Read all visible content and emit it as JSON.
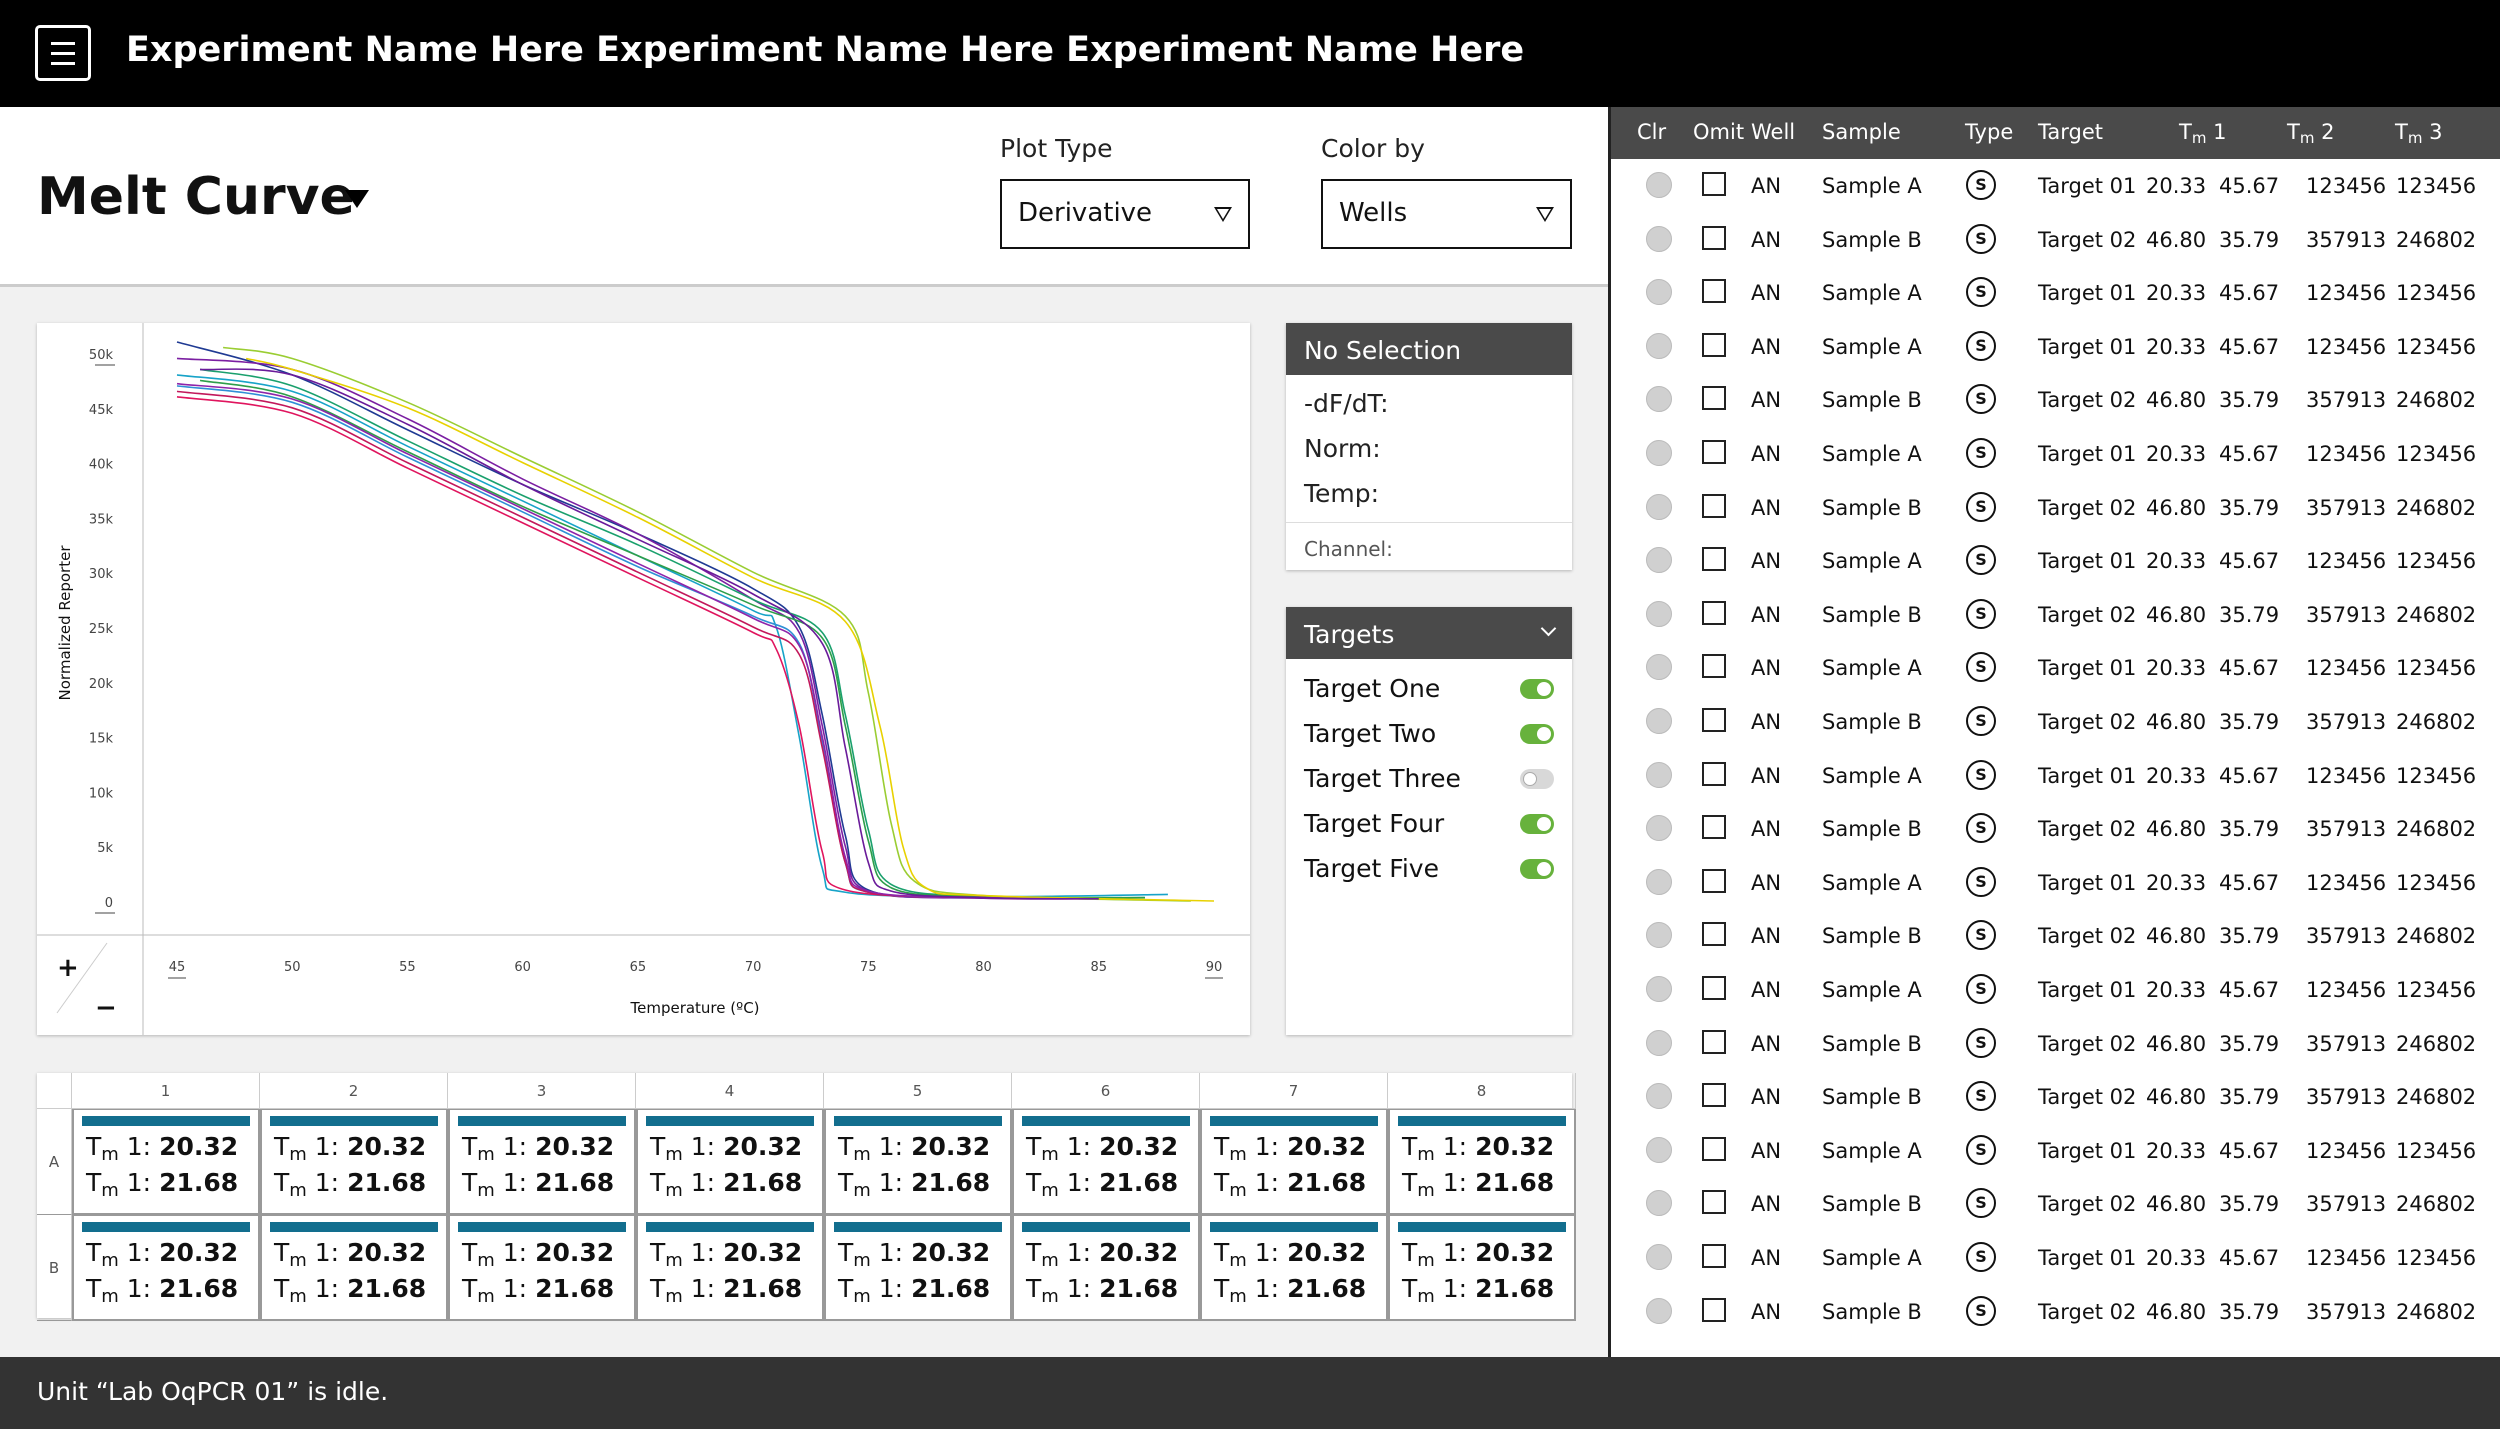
{
  "header": {
    "menu_icon": "hamburger-menu-icon",
    "experiment_name": "Experiment Name Here Experiment Name Here Experiment Name Here"
  },
  "view": {
    "title": "Melt Curve",
    "plot_type_label": "Plot Type",
    "plot_type_value": "Derivative",
    "color_by_label": "Color by",
    "color_by_value": "Wells"
  },
  "chart": {
    "ylabel": "Normalized Reporter",
    "xlabel": "Temperature (ºC)",
    "y_ticks": [
      "0",
      "5k",
      "10k",
      "15k",
      "20k",
      "25k",
      "30k",
      "35k",
      "40k",
      "45k",
      "50k"
    ],
    "x_ticks": [
      "45",
      "50",
      "55",
      "60",
      "65",
      "70",
      "75",
      "80",
      "85",
      "90"
    ],
    "zoom_in": "+",
    "zoom_out": "−"
  },
  "chart_data": {
    "type": "line",
    "xlabel": "Temperature (ºC)",
    "ylabel": "Normalized Reporter",
    "xlim": [
      45,
      90
    ],
    "ylim": [
      0,
      50000
    ],
    "series": [
      {
        "color": "#1f3a93",
        "values": [
          [
            45,
            51000
          ],
          [
            50,
            48000
          ],
          [
            55,
            43000
          ],
          [
            60,
            38000
          ],
          [
            65,
            33500
          ],
          [
            70,
            28500
          ],
          [
            72,
            25000
          ],
          [
            73,
            17000
          ],
          [
            74,
            6000
          ],
          [
            75,
            1000
          ],
          [
            80,
            300
          ],
          [
            87,
            300
          ]
        ]
      },
      {
        "color": "#7b1fa2",
        "values": [
          [
            45,
            49500
          ],
          [
            50,
            48500
          ],
          [
            55,
            44000
          ],
          [
            60,
            38500
          ],
          [
            65,
            33500
          ],
          [
            70,
            27500
          ],
          [
            72,
            24500
          ],
          [
            73,
            16000
          ],
          [
            74,
            5000
          ],
          [
            75,
            900
          ],
          [
            80,
            250
          ],
          [
            85,
            200
          ]
        ]
      },
      {
        "color": "#17a3c8",
        "values": [
          [
            45,
            48000
          ],
          [
            50,
            46500
          ],
          [
            55,
            41500
          ],
          [
            60,
            36500
          ],
          [
            65,
            31500
          ],
          [
            70,
            26500
          ],
          [
            71,
            25000
          ],
          [
            72,
            15000
          ],
          [
            73,
            3000
          ],
          [
            74,
            800
          ],
          [
            80,
            400
          ],
          [
            88,
            600
          ]
        ]
      },
      {
        "color": "#2f8fd6",
        "values": [
          [
            45,
            47000
          ],
          [
            50,
            45500
          ],
          [
            55,
            40500
          ],
          [
            60,
            35500
          ],
          [
            65,
            30500
          ],
          [
            70,
            26000
          ],
          [
            72,
            23500
          ],
          [
            73,
            14500
          ],
          [
            74,
            3500
          ],
          [
            75,
            800
          ],
          [
            80,
            300
          ],
          [
            86,
            300
          ]
        ]
      },
      {
        "color": "#1aa06d",
        "values": [
          [
            46,
            48500
          ],
          [
            50,
            47000
          ],
          [
            55,
            42000
          ],
          [
            60,
            37000
          ],
          [
            65,
            32500
          ],
          [
            70,
            27500
          ],
          [
            73,
            24500
          ],
          [
            74,
            17000
          ],
          [
            75,
            6500
          ],
          [
            76,
            1500
          ],
          [
            80,
            400
          ],
          [
            87,
            300
          ]
        ]
      },
      {
        "color": "#2e9e4a",
        "values": [
          [
            46,
            47500
          ],
          [
            50,
            46000
          ],
          [
            55,
            41000
          ],
          [
            60,
            36000
          ],
          [
            65,
            31500
          ],
          [
            70,
            27000
          ],
          [
            73,
            24000
          ],
          [
            74,
            16000
          ],
          [
            75,
            5500
          ],
          [
            76,
            1200
          ],
          [
            80,
            400
          ],
          [
            87,
            300
          ]
        ]
      },
      {
        "color": "#e0155e",
        "values": [
          [
            45,
            46000
          ],
          [
            50,
            44500
          ],
          [
            55,
            39500
          ],
          [
            60,
            34500
          ],
          [
            65,
            29500
          ],
          [
            70,
            24500
          ],
          [
            71,
            23000
          ],
          [
            72,
            16000
          ],
          [
            73,
            4500
          ],
          [
            74,
            1000
          ],
          [
            80,
            300
          ],
          [
            85,
            200
          ]
        ]
      },
      {
        "color": "#c2185b",
        "values": [
          [
            45,
            46500
          ],
          [
            50,
            45000
          ],
          [
            55,
            40000
          ],
          [
            60,
            35000
          ],
          [
            65,
            30000
          ],
          [
            70,
            25000
          ],
          [
            72,
            22500
          ],
          [
            73,
            14000
          ],
          [
            74,
            3500
          ],
          [
            75,
            800
          ],
          [
            80,
            300
          ],
          [
            85,
            200
          ]
        ]
      },
      {
        "color": "#8e24aa",
        "values": [
          [
            45,
            47200
          ],
          [
            50,
            45800
          ],
          [
            55,
            40800
          ],
          [
            60,
            35800
          ],
          [
            65,
            30800
          ],
          [
            70,
            25800
          ],
          [
            72,
            23300
          ],
          [
            73,
            15000
          ],
          [
            74,
            4000
          ],
          [
            75,
            900
          ],
          [
            80,
            300
          ],
          [
            85,
            200
          ]
        ]
      },
      {
        "color": "#9acd32",
        "values": [
          [
            47,
            50500
          ],
          [
            50,
            49500
          ],
          [
            55,
            45500
          ],
          [
            60,
            40500
          ],
          [
            65,
            35500
          ],
          [
            70,
            30000
          ],
          [
            74,
            26000
          ],
          [
            75,
            19000
          ],
          [
            76,
            7000
          ],
          [
            77,
            1800
          ],
          [
            80,
            500
          ],
          [
            89,
            0
          ]
        ]
      },
      {
        "color": "#e8d100",
        "values": [
          [
            48,
            49500
          ],
          [
            50,
            48500
          ],
          [
            55,
            45000
          ],
          [
            60,
            40000
          ],
          [
            65,
            35000
          ],
          [
            70,
            29500
          ],
          [
            74,
            25500
          ],
          [
            75.5,
            16000
          ],
          [
            76.5,
            5000
          ],
          [
            77.5,
            1200
          ],
          [
            80,
            500
          ],
          [
            90,
            0
          ]
        ]
      },
      {
        "color": "#6a1b9a",
        "values": [
          [
            46,
            48500
          ],
          [
            50,
            48000
          ],
          [
            55,
            43500
          ],
          [
            60,
            38000
          ],
          [
            65,
            33000
          ],
          [
            70,
            28000
          ],
          [
            73,
            23500
          ],
          [
            74,
            14000
          ],
          [
            75,
            3500
          ],
          [
            76,
            900
          ],
          [
            80,
            300
          ],
          [
            85,
            200
          ]
        ]
      }
    ]
  },
  "selection": {
    "title": "No Selection",
    "dfdt_label": "-dF/dT:",
    "norm_label": "Norm:",
    "temp_label": "Temp:",
    "channel_label": "Channel:"
  },
  "targets": {
    "title": "Targets",
    "chevron_icon": "chevron-down-icon",
    "items": [
      {
        "label": "Target One",
        "on": true
      },
      {
        "label": "Target Two",
        "on": true
      },
      {
        "label": "Target Three",
        "on": false
      },
      {
        "label": "Target Four",
        "on": true
      },
      {
        "label": "Target Five",
        "on": true
      }
    ]
  },
  "plate": {
    "columns": [
      "1",
      "2",
      "3",
      "4",
      "5",
      "6",
      "7",
      "8"
    ],
    "rows": [
      "A",
      "B"
    ],
    "bar_color": "#126e8e",
    "tm_prefix": "T",
    "tm_sub": "m",
    "tm_suffix": " 1: ",
    "value1": "20.32",
    "value2": "21.68"
  },
  "table": {
    "headers": {
      "clr": "Clr",
      "omit": "Omit",
      "well": "Well",
      "sample": "Sample",
      "type": "Type",
      "target": "Target",
      "tm": "T",
      "tm_sub": "m",
      "tm1": " 1",
      "tm2": " 2",
      "tm3": " 3"
    },
    "rows": [
      {
        "well": "AN",
        "sample": "Sample A",
        "type": "S",
        "target": "Target 01",
        "tm1": "20.33",
        "tm2": "45.67",
        "tm3": "123456",
        "tm4": "123456"
      },
      {
        "well": "AN",
        "sample": "Sample B",
        "type": "S",
        "target": "Target 02",
        "tm1": "46.80",
        "tm2": "35.79",
        "tm3": "357913",
        "tm4": "246802"
      },
      {
        "well": "AN",
        "sample": "Sample A",
        "type": "S",
        "target": "Target 01",
        "tm1": "20.33",
        "tm2": "45.67",
        "tm3": "123456",
        "tm4": "123456"
      },
      {
        "well": "AN",
        "sample": "Sample A",
        "type": "S",
        "target": "Target 01",
        "tm1": "20.33",
        "tm2": "45.67",
        "tm3": "123456",
        "tm4": "123456"
      },
      {
        "well": "AN",
        "sample": "Sample B",
        "type": "S",
        "target": "Target 02",
        "tm1": "46.80",
        "tm2": "35.79",
        "tm3": "357913",
        "tm4": "246802"
      },
      {
        "well": "AN",
        "sample": "Sample A",
        "type": "S",
        "target": "Target 01",
        "tm1": "20.33",
        "tm2": "45.67",
        "tm3": "123456",
        "tm4": "123456"
      },
      {
        "well": "AN",
        "sample": "Sample B",
        "type": "S",
        "target": "Target 02",
        "tm1": "46.80",
        "tm2": "35.79",
        "tm3": "357913",
        "tm4": "246802"
      },
      {
        "well": "AN",
        "sample": "Sample A",
        "type": "S",
        "target": "Target 01",
        "tm1": "20.33",
        "tm2": "45.67",
        "tm3": "123456",
        "tm4": "123456"
      },
      {
        "well": "AN",
        "sample": "Sample B",
        "type": "S",
        "target": "Target 02",
        "tm1": "46.80",
        "tm2": "35.79",
        "tm3": "357913",
        "tm4": "246802"
      },
      {
        "well": "AN",
        "sample": "Sample A",
        "type": "S",
        "target": "Target 01",
        "tm1": "20.33",
        "tm2": "45.67",
        "tm3": "123456",
        "tm4": "123456"
      },
      {
        "well": "AN",
        "sample": "Sample B",
        "type": "S",
        "target": "Target 02",
        "tm1": "46.80",
        "tm2": "35.79",
        "tm3": "357913",
        "tm4": "246802"
      },
      {
        "well": "AN",
        "sample": "Sample A",
        "type": "S",
        "target": "Target 01",
        "tm1": "20.33",
        "tm2": "45.67",
        "tm3": "123456",
        "tm4": "123456"
      },
      {
        "well": "AN",
        "sample": "Sample B",
        "type": "S",
        "target": "Target 02",
        "tm1": "46.80",
        "tm2": "35.79",
        "tm3": "357913",
        "tm4": "246802"
      },
      {
        "well": "AN",
        "sample": "Sample A",
        "type": "S",
        "target": "Target 01",
        "tm1": "20.33",
        "tm2": "45.67",
        "tm3": "123456",
        "tm4": "123456"
      },
      {
        "well": "AN",
        "sample": "Sample B",
        "type": "S",
        "target": "Target 02",
        "tm1": "46.80",
        "tm2": "35.79",
        "tm3": "357913",
        "tm4": "246802"
      },
      {
        "well": "AN",
        "sample": "Sample A",
        "type": "S",
        "target": "Target 01",
        "tm1": "20.33",
        "tm2": "45.67",
        "tm3": "123456",
        "tm4": "123456"
      },
      {
        "well": "AN",
        "sample": "Sample B",
        "type": "S",
        "target": "Target 02",
        "tm1": "46.80",
        "tm2": "35.79",
        "tm3": "357913",
        "tm4": "246802"
      },
      {
        "well": "AN",
        "sample": "Sample B",
        "type": "S",
        "target": "Target 02",
        "tm1": "46.80",
        "tm2": "35.79",
        "tm3": "357913",
        "tm4": "246802"
      },
      {
        "well": "AN",
        "sample": "Sample A",
        "type": "S",
        "target": "Target 01",
        "tm1": "20.33",
        "tm2": "45.67",
        "tm3": "123456",
        "tm4": "123456"
      },
      {
        "well": "AN",
        "sample": "Sample B",
        "type": "S",
        "target": "Target 02",
        "tm1": "46.80",
        "tm2": "35.79",
        "tm3": "357913",
        "tm4": "246802"
      },
      {
        "well": "AN",
        "sample": "Sample A",
        "type": "S",
        "target": "Target 01",
        "tm1": "20.33",
        "tm2": "45.67",
        "tm3": "123456",
        "tm4": "123456"
      },
      {
        "well": "AN",
        "sample": "Sample B",
        "type": "S",
        "target": "Target 02",
        "tm1": "46.80",
        "tm2": "35.79",
        "tm3": "357913",
        "tm4": "246802"
      }
    ]
  },
  "status": {
    "text": "Unit “Lab OqPCR 01” is idle."
  }
}
